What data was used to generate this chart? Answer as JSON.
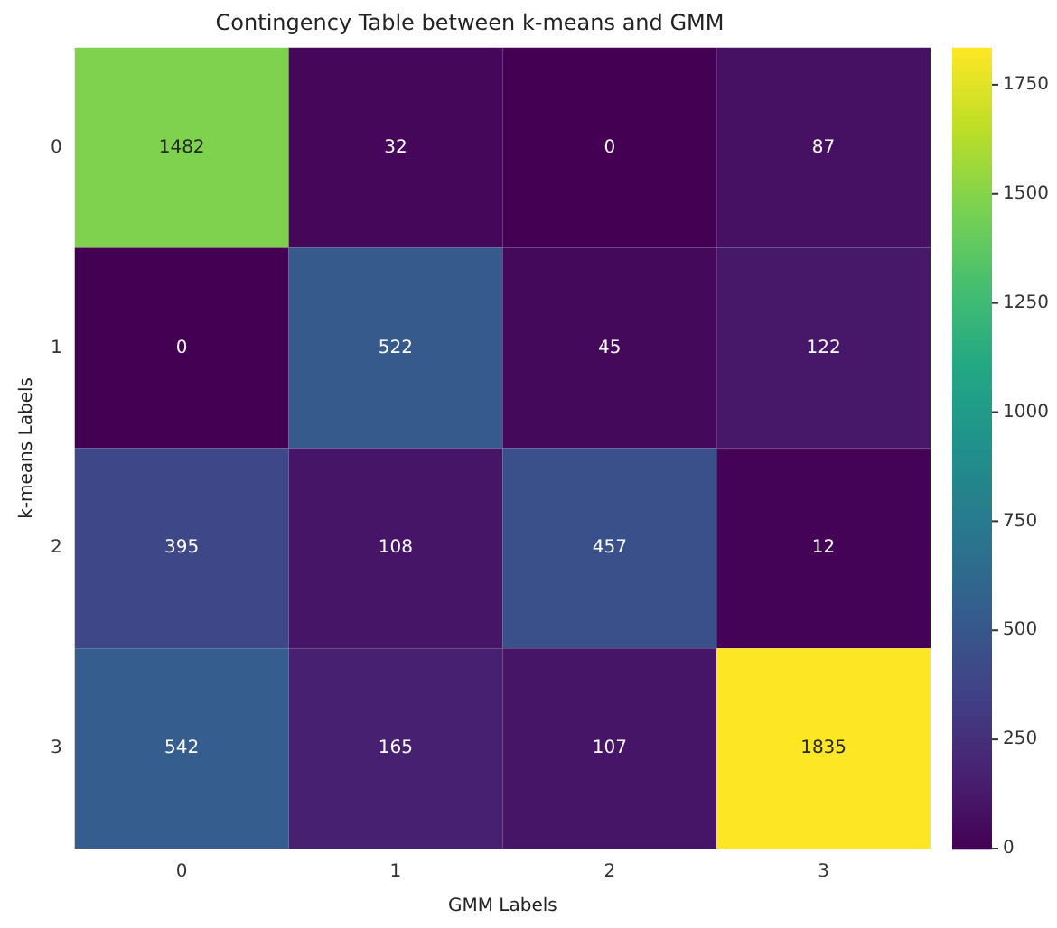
{
  "chart_data": {
    "type": "heatmap",
    "title": "Contingency Table between k-means and GMM",
    "xlabel": "GMM Labels",
    "ylabel": "k-means Labels",
    "categories": [
      "0",
      "1",
      "2",
      "3"
    ],
    "y_categories": [
      "0",
      "1",
      "2",
      "3"
    ],
    "cells": [
      [
        1482,
        32,
        0,
        87
      ],
      [
        0,
        522,
        45,
        122
      ],
      [
        395,
        108,
        457,
        12
      ],
      [
        542,
        165,
        107,
        1835
      ]
    ],
    "data_labels": true,
    "clim": [
      0,
      1835
    ],
    "cticks": [
      0,
      250,
      500,
      750,
      1000,
      1250,
      1500,
      1750
    ]
  }
}
